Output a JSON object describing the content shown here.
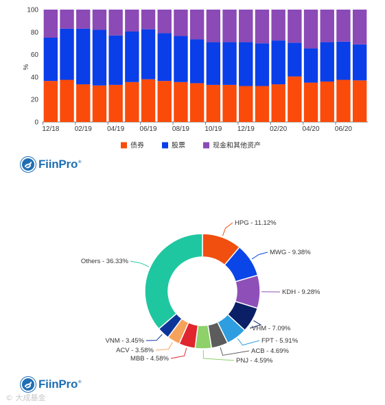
{
  "brand": {
    "name": "FiinPro",
    "reg": "®",
    "color": "#1f6fb5"
  },
  "watermark": "© 大成基金",
  "chart_data": [
    {
      "type": "bar",
      "stacked": true,
      "ylabel": "%",
      "ylim": [
        0,
        100
      ],
      "yticks": [
        0,
        20,
        40,
        60,
        80,
        100
      ],
      "categories": [
        "12/18",
        "01/19",
        "02/19",
        "03/19",
        "04/19",
        "05/19",
        "06/19",
        "07/19",
        "08/19",
        "09/19",
        "10/19",
        "11/19",
        "12/19",
        "01/20",
        "02/20",
        "03/20",
        "04/20",
        "05/20",
        "06/20",
        "07/20"
      ],
      "xtick_labels": [
        "12/18",
        "",
        "02/19",
        "",
        "04/19",
        "",
        "06/19",
        "",
        "08/19",
        "",
        "10/19",
        "",
        "12/19",
        "",
        "02/20",
        "",
        "04/20",
        "",
        "06/20",
        ""
      ],
      "series": [
        {
          "name": "债券",
          "color": "#fa4b0a",
          "values": [
            36.5,
            37.5,
            33.5,
            32.5,
            33,
            35.5,
            38,
            36.5,
            35.5,
            34.5,
            33,
            33,
            32,
            32,
            33.5,
            40.5,
            35,
            36,
            37.5,
            37
          ]
        },
        {
          "name": "股票",
          "color": "#0a3ee8",
          "values": [
            38.5,
            45.5,
            49.5,
            49.5,
            44,
            45,
            44.5,
            42.5,
            41,
            39,
            38,
            38,
            39,
            38,
            39,
            30,
            30.5,
            35,
            34,
            32
          ]
        },
        {
          "name": "现金和其他资产",
          "color": "#8b4ab6",
          "values": [
            25,
            17,
            17,
            18,
            23,
            19.5,
            17.5,
            21,
            23.5,
            26.5,
            29,
            29,
            29,
            30,
            27.5,
            29.5,
            34.5,
            29,
            28.5,
            31
          ]
        }
      ],
      "grid": false,
      "legend_position": "bottom-center"
    },
    {
      "type": "pie",
      "donut": true,
      "slices": [
        {
          "label": "HPG - 11.12%",
          "value": 11.12,
          "color": "#f04f0f"
        },
        {
          "label": "MWG - 9.38%",
          "value": 9.38,
          "color": "#0a45e8"
        },
        {
          "label": "KDH - 9.28%",
          "value": 9.28,
          "color": "#8e4fb8"
        },
        {
          "label": "VHM - 7.09%",
          "value": 7.09,
          "color": "#0a1f66"
        },
        {
          "label": "FPT - 5.91%",
          "value": 5.91,
          "color": "#2e9ee0"
        },
        {
          "label": "ACB - 4.69%",
          "value": 4.69,
          "color": "#5c5c5c"
        },
        {
          "label": "PNJ - 4.59%",
          "value": 4.59,
          "color": "#8ed06a"
        },
        {
          "label": "MBB - 4.58%",
          "value": 4.58,
          "color": "#e0252f"
        },
        {
          "label": "ACV - 3.58%",
          "value": 3.58,
          "color": "#f5a25d"
        },
        {
          "label": "VNM - 3.45%",
          "value": 3.45,
          "color": "#0d3599"
        },
        {
          "label": "Others - 36.33%",
          "value": 36.33,
          "color": "#1fc7a0"
        }
      ]
    }
  ]
}
